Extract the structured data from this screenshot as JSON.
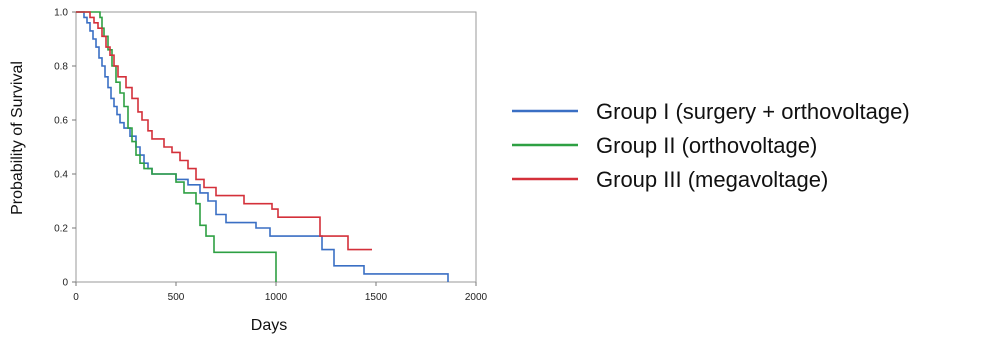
{
  "chart_data": {
    "type": "line",
    "title": "",
    "xlabel": "Days",
    "ylabel": "Probability of Survival",
    "xlim": [
      0,
      2000
    ],
    "ylim": [
      0,
      1.0
    ],
    "xticks": [
      0,
      500,
      1000,
      1500,
      2000
    ],
    "xtick_labels": [
      "0",
      "500",
      "1000",
      "1500",
      "2000"
    ],
    "yticks": [
      0,
      0.2,
      0.4,
      0.6,
      0.8,
      1.0
    ],
    "ytick_labels": [
      "0",
      "0.2",
      "0.4",
      "0.6",
      "0.8",
      "1.0"
    ],
    "grid": false,
    "legend_position": "right",
    "series": [
      {
        "name": "Group I (surgery + orthovoltage)",
        "color": "#3a6fc4",
        "step": true,
        "points": [
          [
            0,
            1.0
          ],
          [
            30,
            1.0
          ],
          [
            40,
            0.98
          ],
          [
            55,
            0.96
          ],
          [
            70,
            0.93
          ],
          [
            85,
            0.9
          ],
          [
            100,
            0.87
          ],
          [
            115,
            0.83
          ],
          [
            130,
            0.8
          ],
          [
            145,
            0.76
          ],
          [
            160,
            0.72
          ],
          [
            175,
            0.68
          ],
          [
            190,
            0.65
          ],
          [
            205,
            0.62
          ],
          [
            220,
            0.59
          ],
          [
            240,
            0.57
          ],
          [
            270,
            0.54
          ],
          [
            300,
            0.5
          ],
          [
            320,
            0.47
          ],
          [
            340,
            0.44
          ],
          [
            360,
            0.42
          ],
          [
            380,
            0.4
          ],
          [
            500,
            0.38
          ],
          [
            560,
            0.36
          ],
          [
            620,
            0.33
          ],
          [
            660,
            0.3
          ],
          [
            700,
            0.25
          ],
          [
            750,
            0.22
          ],
          [
            900,
            0.2
          ],
          [
            970,
            0.17
          ],
          [
            1230,
            0.12
          ],
          [
            1290,
            0.06
          ],
          [
            1440,
            0.03
          ],
          [
            1860,
            0.03
          ],
          [
            1860,
            0.0
          ]
        ]
      },
      {
        "name": "Group II (orthovoltage)",
        "color": "#2ea043",
        "step": true,
        "points": [
          [
            0,
            1.0
          ],
          [
            110,
            1.0
          ],
          [
            120,
            0.98
          ],
          [
            130,
            0.94
          ],
          [
            140,
            0.91
          ],
          [
            160,
            0.86
          ],
          [
            180,
            0.8
          ],
          [
            200,
            0.74
          ],
          [
            220,
            0.7
          ],
          [
            240,
            0.65
          ],
          [
            260,
            0.57
          ],
          [
            280,
            0.52
          ],
          [
            300,
            0.47
          ],
          [
            320,
            0.44
          ],
          [
            340,
            0.42
          ],
          [
            380,
            0.4
          ],
          [
            500,
            0.37
          ],
          [
            540,
            0.33
          ],
          [
            600,
            0.29
          ],
          [
            620,
            0.21
          ],
          [
            650,
            0.17
          ],
          [
            690,
            0.11
          ],
          [
            1000,
            0.0
          ]
        ]
      },
      {
        "name": "Group III (megavoltage)",
        "color": "#d4303a",
        "step": true,
        "points": [
          [
            0,
            1.0
          ],
          [
            50,
            1.0
          ],
          [
            70,
            0.98
          ],
          [
            90,
            0.96
          ],
          [
            110,
            0.94
          ],
          [
            130,
            0.91
          ],
          [
            150,
            0.87
          ],
          [
            170,
            0.84
          ],
          [
            190,
            0.8
          ],
          [
            210,
            0.76
          ],
          [
            230,
            0.76
          ],
          [
            250,
            0.72
          ],
          [
            280,
            0.68
          ],
          [
            310,
            0.63
          ],
          [
            330,
            0.6
          ],
          [
            360,
            0.56
          ],
          [
            380,
            0.53
          ],
          [
            440,
            0.5
          ],
          [
            480,
            0.48
          ],
          [
            520,
            0.45
          ],
          [
            560,
            0.42
          ],
          [
            600,
            0.38
          ],
          [
            640,
            0.35
          ],
          [
            700,
            0.32
          ],
          [
            840,
            0.29
          ],
          [
            980,
            0.27
          ],
          [
            1010,
            0.24
          ],
          [
            1220,
            0.17
          ],
          [
            1360,
            0.12
          ],
          [
            1480,
            0.12
          ]
        ]
      }
    ]
  }
}
